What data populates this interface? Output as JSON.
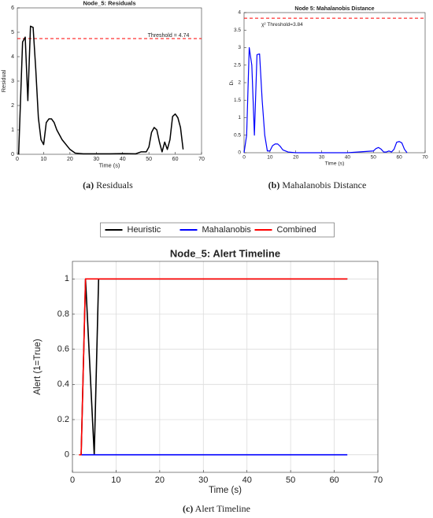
{
  "chart_data": [
    {
      "type": "line",
      "title": "Node_5: Residuals",
      "xlabel": "Time (s)",
      "ylabel": "Residual",
      "x": [
        0.5,
        2,
        3,
        4,
        5,
        6,
        7,
        8,
        9,
        10,
        11,
        12,
        13,
        14,
        15,
        17,
        20,
        22,
        25,
        30,
        35,
        40,
        45,
        47,
        49,
        50,
        51,
        52,
        53,
        54,
        55,
        56,
        57,
        58,
        59,
        60,
        61,
        62,
        63
      ],
      "values": [
        0,
        4.6,
        4.8,
        2.2,
        5.25,
        5.2,
        3.5,
        1.5,
        0.6,
        0.4,
        1.3,
        1.45,
        1.45,
        1.3,
        1.0,
        0.6,
        0.2,
        0.05,
        0.02,
        0.02,
        0.02,
        0.03,
        0.02,
        0.1,
        0.1,
        0.3,
        0.9,
        1.1,
        1.0,
        0.5,
        0.1,
        0.5,
        0.2,
        0.6,
        1.55,
        1.65,
        1.5,
        1.1,
        0.2
      ],
      "color": "#000000",
      "threshold": 4.74,
      "threshold_label": "Threshold = 4.74",
      "threshold_color": "#ff0000",
      "xlim": [
        0,
        70
      ],
      "xticks": [
        0,
        10,
        20,
        30,
        40,
        50,
        60,
        70
      ],
      "ylim": [
        0,
        6
      ],
      "yticks": [
        0,
        1,
        2,
        3,
        4,
        5,
        6
      ],
      "grid": false,
      "caption_label": "(a)",
      "caption": "Residuals"
    },
    {
      "type": "line",
      "title": "Node 5: Mahalanobis Distance",
      "xlabel": "Time (s)",
      "ylabel": "Dₜ",
      "x": [
        0,
        1,
        2,
        3,
        4,
        5,
        6,
        7,
        8,
        9,
        10,
        11,
        12,
        13,
        14,
        15,
        17,
        20,
        30,
        40,
        50,
        51,
        52,
        53,
        54,
        55,
        56,
        57,
        58,
        59,
        60,
        61,
        62,
        63
      ],
      "values": [
        0,
        0.5,
        3.0,
        2.5,
        0.5,
        2.8,
        2.82,
        1.5,
        0.5,
        0.05,
        0.05,
        0.2,
        0.25,
        0.25,
        0.18,
        0.08,
        0.02,
        0,
        0,
        0,
        0.05,
        0.12,
        0.15,
        0.1,
        0.02,
        0.02,
        0.05,
        0.02,
        0.1,
        0.3,
        0.32,
        0.28,
        0.1,
        0
      ],
      "color": "#0000ff",
      "threshold": 3.84,
      "threshold_label": "χ² Threshold=3.84",
      "threshold_color": "#ff0000",
      "xlim": [
        0,
        70
      ],
      "xticks": [
        0,
        10,
        20,
        30,
        40,
        50,
        60,
        70
      ],
      "ylim": [
        0,
        4
      ],
      "yticks": [
        0,
        0.5,
        1,
        1.5,
        2,
        2.5,
        3,
        3.5,
        4
      ],
      "grid": false,
      "caption_label": "(b)",
      "caption": "Mahalanobis Distance"
    },
    {
      "type": "line",
      "title": "Node_5: Alert Timeline",
      "xlabel": "Time (s)",
      "ylabel": "Alert (1=True)",
      "series": [
        {
          "name": "Heuristic",
          "color": "#000000",
          "x": [
            2,
            3,
            5,
            6,
            63
          ],
          "values": [
            0,
            1,
            0,
            1,
            1
          ]
        },
        {
          "name": "Mahalanobis",
          "color": "#0000ff",
          "x": [
            2,
            63
          ],
          "values": [
            0,
            0
          ]
        },
        {
          "name": "Combined",
          "color": "#ff0000",
          "x": [
            1.5,
            2,
            3,
            63
          ],
          "values": [
            0,
            0,
            1,
            1
          ]
        }
      ],
      "xlim": [
        0,
        70
      ],
      "xticks": [
        0,
        10,
        20,
        30,
        40,
        50,
        60,
        70
      ],
      "ylim": [
        -0.1,
        1.1
      ],
      "yticks": [
        0,
        0.2,
        0.4,
        0.6,
        0.8,
        1
      ],
      "grid": true,
      "caption_label": "(c)",
      "caption": "Alert Timeline"
    }
  ]
}
